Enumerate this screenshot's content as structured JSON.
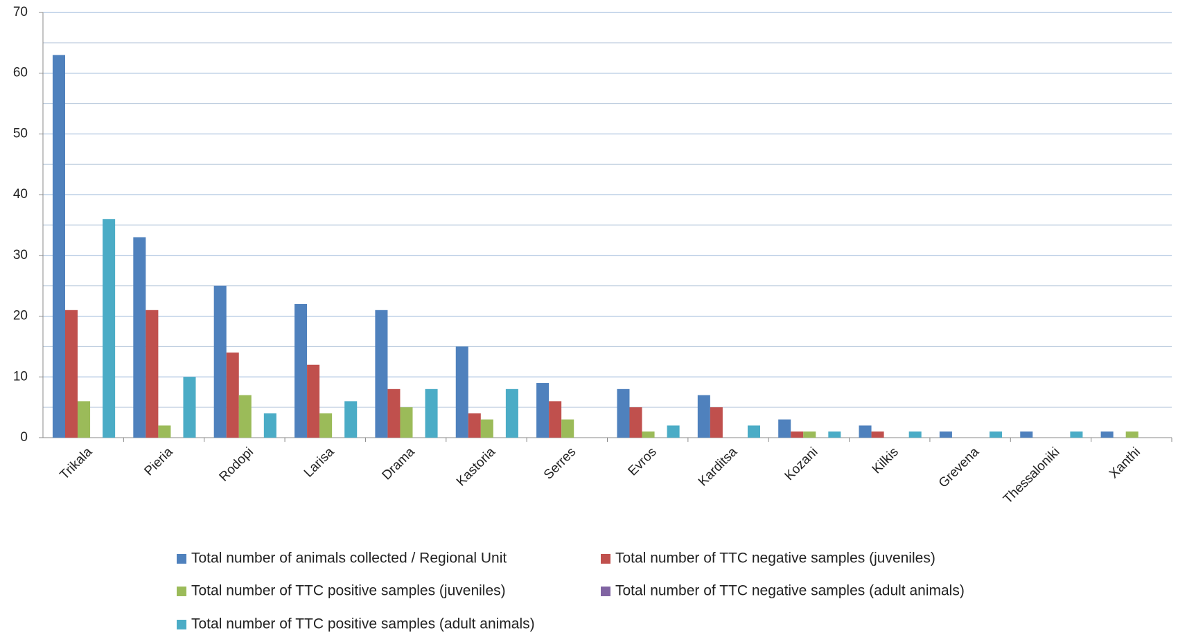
{
  "chart_data": {
    "type": "bar",
    "categories": [
      "Trikala",
      "Pieria",
      "Rodopi",
      "Larisa",
      "Drama",
      "Kastoria",
      "Serres",
      "Evros",
      "Karditsa",
      "Kozani",
      "Kilkis",
      "Grevena",
      "Thessaloniki",
      "Xanthi"
    ],
    "series": [
      {
        "name": "Total number of animals collected / Regional Unit",
        "color": "#4f81bd",
        "values": [
          63,
          33,
          25,
          22,
          21,
          15,
          9,
          8,
          7,
          3,
          2,
          1,
          1,
          1
        ]
      },
      {
        "name": "Total number of TTC negative samples (juveniles)",
        "color": "#c0504d",
        "values": [
          21,
          21,
          14,
          12,
          8,
          4,
          6,
          5,
          5,
          1,
          1,
          0,
          0,
          0
        ]
      },
      {
        "name": "Total number of TTC positive samples (juveniles)",
        "color": "#9bbb59",
        "values": [
          6,
          2,
          7,
          4,
          5,
          3,
          3,
          1,
          0,
          1,
          0,
          0,
          0,
          1
        ]
      },
      {
        "name": "Total number of TTC negative samples (adult animals)",
        "color": "#8064a2",
        "values": [
          0,
          0,
          0,
          0,
          0,
          0,
          0,
          0,
          0,
          0,
          0,
          0,
          0,
          0
        ]
      },
      {
        "name": "Total number of TTC positive samples (adult animals)",
        "color": "#4bacc6",
        "values": [
          36,
          10,
          4,
          6,
          8,
          8,
          0,
          2,
          2,
          1,
          1,
          1,
          1,
          0
        ]
      }
    ],
    "ylim": [
      0,
      70
    ],
    "yticks": [
      0,
      10,
      20,
      30,
      40,
      50,
      60,
      70
    ],
    "minor_yticks": [
      5,
      15,
      25,
      35,
      45,
      55,
      65
    ],
    "grid": true
  }
}
